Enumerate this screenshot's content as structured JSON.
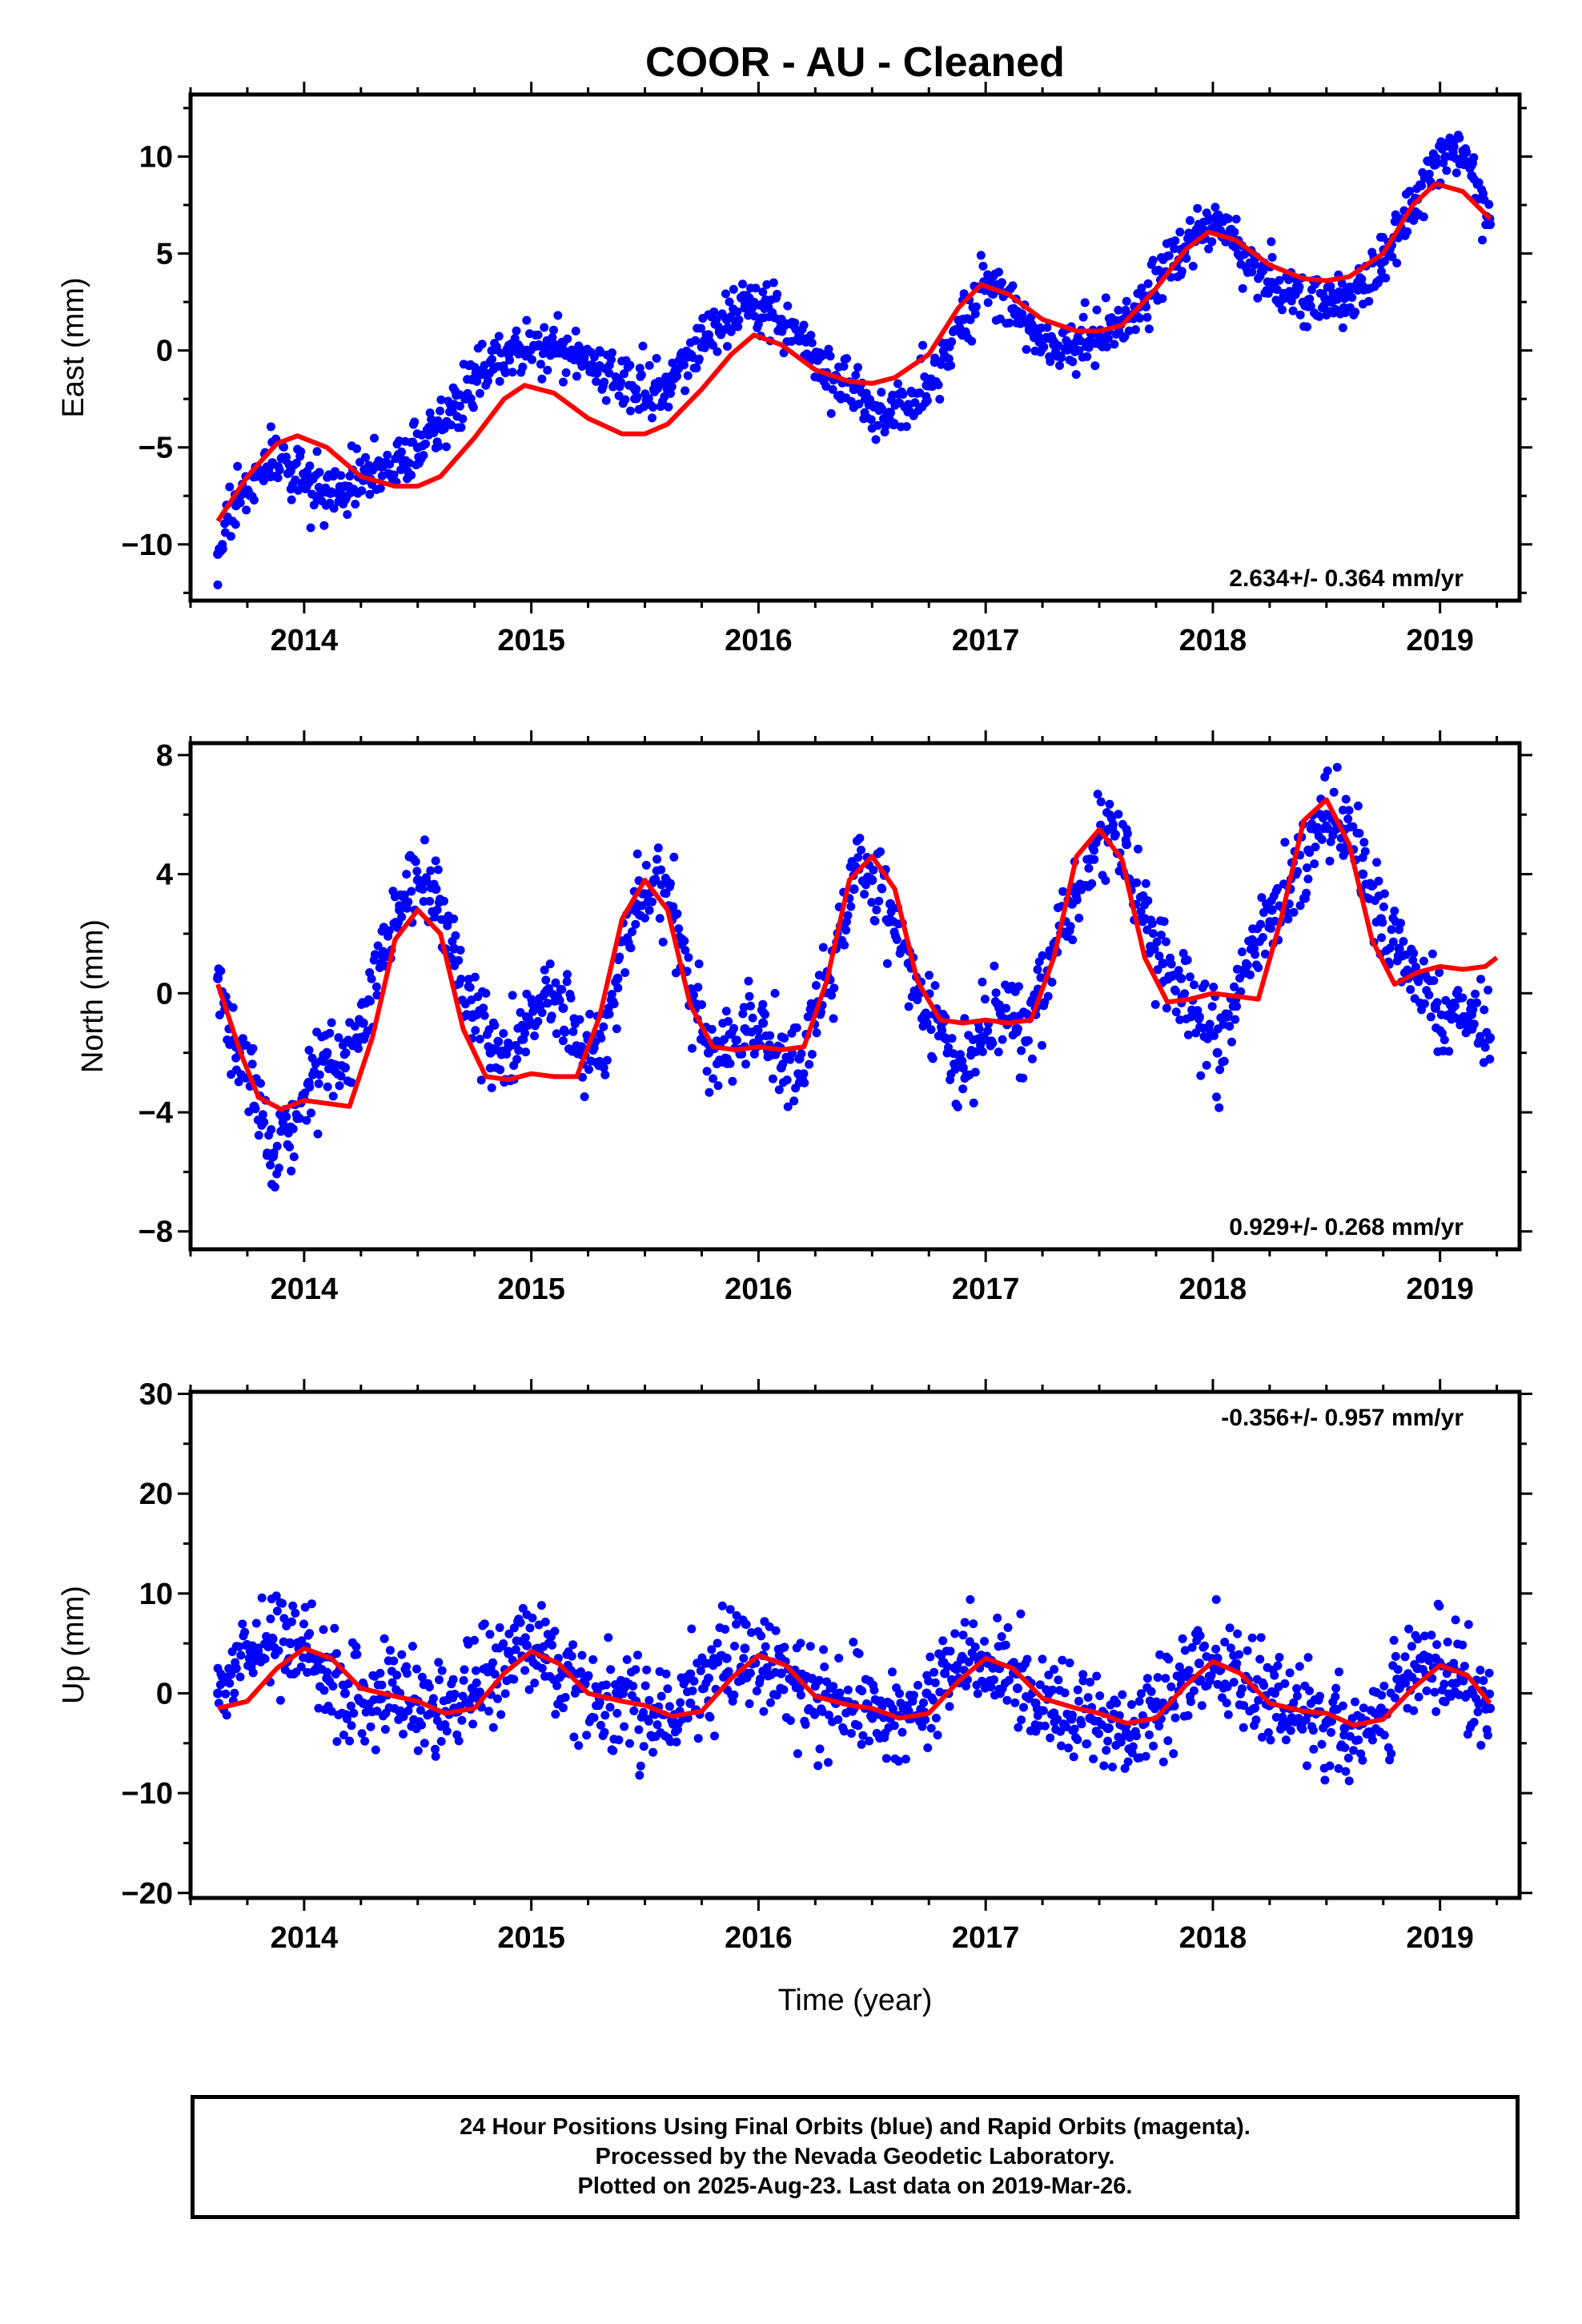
{
  "title": "COOR  - AU - Cleaned",
  "xlabel": "Time (year)",
  "footer": {
    "line1": "24 Hour Positions Using Final Orbits (blue) and Rapid Orbits (magenta).",
    "line2": "Processed by the Nevada Geodetic Laboratory.",
    "line3": "Plotted on 2025-Aug-23. Last data on 2019-Mar-26."
  },
  "colors": {
    "points": "#0000ff",
    "fit": "#ff0000",
    "axes": "#000000"
  },
  "chart_data": [
    {
      "type": "scatter",
      "ylabel": "East (mm)",
      "rate_label": "2.634+/- 0.364 mm/yr",
      "xlim": [
        2013.5,
        2019.35
      ],
      "ylim": [
        -12.9,
        13.2
      ],
      "xticks": [
        2014,
        2015,
        2016,
        2017,
        2018,
        2019
      ],
      "yticks": [
        -10,
        -5,
        0,
        5,
        10
      ],
      "series": [
        {
          "kind": "points",
          "x": [
            2013.62,
            2013.7,
            2013.78,
            2013.86,
            2013.94,
            2014.02,
            2014.1,
            2014.18,
            2014.26,
            2014.34,
            2014.42,
            2014.5,
            2014.58,
            2014.66,
            2014.74,
            2014.82,
            2014.9,
            2014.98,
            2015.06,
            2015.14,
            2015.22,
            2015.3,
            2015.38,
            2015.46,
            2015.54,
            2015.62,
            2015.7,
            2015.78,
            2015.86,
            2015.94,
            2016.02,
            2016.1,
            2016.18,
            2016.26,
            2016.34,
            2016.42,
            2016.5,
            2016.58,
            2016.66,
            2016.74,
            2016.82,
            2016.9,
            2016.98,
            2017.06,
            2017.14,
            2017.22,
            2017.3,
            2017.38,
            2017.46,
            2017.54,
            2017.62,
            2017.7,
            2017.78,
            2017.86,
            2017.94,
            2018.02,
            2018.1,
            2018.18,
            2018.26,
            2018.34,
            2018.42,
            2018.5,
            2018.58,
            2018.66,
            2018.74,
            2018.82,
            2018.9,
            2018.98,
            2019.06,
            2019.14,
            2019.22
          ],
          "y": [
            -10.5,
            -8.0,
            -6.5,
            -5.8,
            -6.2,
            -6.8,
            -7.3,
            -7.0,
            -6.5,
            -6.0,
            -5.5,
            -5.0,
            -4.0,
            -2.8,
            -1.5,
            -0.6,
            -0.2,
            0.0,
            0.2,
            0.4,
            0.0,
            -0.8,
            -1.5,
            -2.0,
            -2.0,
            -1.3,
            -0.2,
            0.8,
            1.6,
            2.2,
            2.4,
            1.6,
            0.5,
            -0.5,
            -1.3,
            -2.0,
            -2.8,
            -3.2,
            -2.8,
            -1.8,
            -0.3,
            1.6,
            3.2,
            3.3,
            2.0,
            0.8,
            0.3,
            0.3,
            0.5,
            1.0,
            1.8,
            2.8,
            4.0,
            5.2,
            6.2,
            6.5,
            5.6,
            4.5,
            3.5,
            2.9,
            2.6,
            2.5,
            2.7,
            3.3,
            4.5,
            6.0,
            7.8,
            9.6,
            10.5,
            9.0,
            6.5
          ]
        },
        {
          "kind": "fit",
          "x": [
            2013.62,
            2013.75,
            2013.88,
            2013.97,
            2014.1,
            2014.25,
            2014.4,
            2014.5,
            2014.6,
            2014.75,
            2014.88,
            2014.97,
            2015.1,
            2015.25,
            2015.4,
            2015.5,
            2015.6,
            2015.75,
            2015.88,
            2015.98,
            2016.1,
            2016.25,
            2016.4,
            2016.5,
            2016.6,
            2016.75,
            2016.88,
            2016.98,
            2017.1,
            2017.25,
            2017.4,
            2017.5,
            2017.6,
            2017.75,
            2017.88,
            2017.98,
            2018.1,
            2018.25,
            2018.4,
            2018.5,
            2018.6,
            2018.75,
            2018.88,
            2018.98,
            2019.1,
            2019.22
          ],
          "y": [
            -8.8,
            -6.5,
            -4.8,
            -4.4,
            -5.0,
            -6.5,
            -7.0,
            -7.0,
            -6.5,
            -4.5,
            -2.5,
            -1.8,
            -2.2,
            -3.5,
            -4.3,
            -4.3,
            -3.8,
            -2.0,
            -0.2,
            0.8,
            0.3,
            -1.0,
            -1.6,
            -1.7,
            -1.4,
            -0.2,
            2.2,
            3.4,
            2.9,
            1.6,
            1.0,
            1.0,
            1.3,
            3.2,
            5.2,
            6.1,
            5.7,
            4.4,
            3.7,
            3.6,
            3.8,
            5.0,
            7.5,
            8.6,
            8.2,
            6.8
          ]
        }
      ]
    },
    {
      "type": "scatter",
      "ylabel": "North (mm)",
      "rate_label": "0.929+/- 0.268 mm/yr",
      "xlim": [
        2013.5,
        2019.35
      ],
      "ylim": [
        -8.6,
        8.4
      ],
      "xticks": [
        2014,
        2015,
        2016,
        2017,
        2018,
        2019
      ],
      "yticks": [
        -8,
        -4,
        0,
        4,
        8
      ],
      "series": [
        {
          "kind": "points",
          "x": [
            2013.62,
            2013.7,
            2013.78,
            2013.86,
            2013.94,
            2014.02,
            2014.1,
            2014.18,
            2014.26,
            2014.34,
            2014.42,
            2014.5,
            2014.58,
            2014.66,
            2014.74,
            2014.82,
            2014.9,
            2014.98,
            2015.06,
            2015.14,
            2015.22,
            2015.3,
            2015.38,
            2015.46,
            2015.54,
            2015.62,
            2015.7,
            2015.78,
            2015.86,
            2015.94,
            2016.02,
            2016.1,
            2016.18,
            2016.26,
            2016.34,
            2016.42,
            2016.5,
            2016.58,
            2016.66,
            2016.74,
            2016.82,
            2016.9,
            2016.98,
            2017.06,
            2017.14,
            2017.22,
            2017.3,
            2017.38,
            2017.46,
            2017.54,
            2017.62,
            2017.7,
            2017.78,
            2017.86,
            2017.94,
            2018.02,
            2018.1,
            2018.18,
            2018.26,
            2018.34,
            2018.42,
            2018.5,
            2018.58,
            2018.66,
            2018.74,
            2018.82,
            2018.9,
            2018.98,
            2019.06,
            2019.14,
            2019.22
          ],
          "y": [
            0.5,
            -1.8,
            -3.8,
            -5.5,
            -4.5,
            -3.0,
            -2.0,
            -2.5,
            -1.0,
            1.0,
            2.8,
            3.8,
            3.5,
            1.5,
            -0.8,
            -2.0,
            -1.8,
            -0.8,
            0.0,
            -0.5,
            -1.8,
            -2.3,
            0.5,
            3.0,
            3.8,
            2.8,
            0.0,
            -2.0,
            -2.2,
            -1.2,
            -1.0,
            -2.5,
            -2.2,
            -0.5,
            1.5,
            3.5,
            3.8,
            3.0,
            1.0,
            -1.0,
            -1.5,
            -2.5,
            -1.5,
            -0.5,
            -1.2,
            -0.5,
            1.5,
            3.0,
            4.5,
            5.5,
            5.0,
            2.5,
            1.0,
            0.5,
            -0.8,
            -2.0,
            -0.2,
            1.5,
            2.8,
            3.5,
            4.8,
            6.0,
            5.5,
            4.0,
            2.5,
            1.5,
            0.5,
            -0.5,
            -0.8,
            -1.2,
            -1.5
          ]
        },
        {
          "kind": "fit",
          "x": [
            2013.62,
            2013.72,
            2013.8,
            2013.9,
            2014.0,
            2014.1,
            2014.2,
            2014.3,
            2014.4,
            2014.5,
            2014.6,
            2014.7,
            2014.8,
            2014.9,
            2015.0,
            2015.1,
            2015.2,
            2015.3,
            2015.4,
            2015.5,
            2015.6,
            2015.7,
            2015.8,
            2015.9,
            2016.0,
            2016.1,
            2016.2,
            2016.3,
            2016.4,
            2016.5,
            2016.6,
            2016.7,
            2016.8,
            2016.9,
            2017.0,
            2017.1,
            2017.2,
            2017.3,
            2017.4,
            2017.5,
            2017.6,
            2017.7,
            2017.8,
            2017.9,
            2018.0,
            2018.1,
            2018.2,
            2018.3,
            2018.4,
            2018.5,
            2018.6,
            2018.7,
            2018.8,
            2018.9,
            2019.0,
            2019.1,
            2019.2,
            2019.25
          ],
          "y": [
            0.3,
            -2.0,
            -3.5,
            -3.9,
            -3.6,
            -3.7,
            -3.8,
            -1.5,
            1.8,
            2.8,
            2.0,
            -1.2,
            -2.8,
            -2.9,
            -2.7,
            -2.8,
            -2.8,
            -0.8,
            2.5,
            3.8,
            2.8,
            -0.4,
            -1.8,
            -1.9,
            -1.8,
            -1.9,
            -1.8,
            0.4,
            3.8,
            4.6,
            3.5,
            0.4,
            -0.9,
            -1.0,
            -0.9,
            -1.0,
            -0.9,
            1.2,
            4.6,
            5.5,
            4.5,
            1.2,
            -0.3,
            -0.2,
            0.0,
            -0.1,
            -0.2,
            2.5,
            5.8,
            6.5,
            5.0,
            1.8,
            0.3,
            0.7,
            0.9,
            0.8,
            0.9,
            1.2
          ]
        }
      ]
    },
    {
      "type": "scatter",
      "ylabel": "Up (mm)",
      "rate_label": "-0.356+/- 0.957 mm/yr",
      "xlim": [
        2013.5,
        2019.35
      ],
      "ylim": [
        -20.5,
        30.2
      ],
      "xticks": [
        2014,
        2015,
        2016,
        2017,
        2018,
        2019
      ],
      "yticks": [
        -20,
        -10,
        0,
        10,
        20,
        30
      ],
      "series": [
        {
          "kind": "points",
          "x": [
            2013.62,
            2013.7,
            2013.78,
            2013.86,
            2013.94,
            2014.02,
            2014.1,
            2014.18,
            2014.26,
            2014.34,
            2014.42,
            2014.5,
            2014.58,
            2014.66,
            2014.74,
            2014.82,
            2014.9,
            2014.98,
            2015.06,
            2015.14,
            2015.22,
            2015.3,
            2015.38,
            2015.46,
            2015.54,
            2015.62,
            2015.7,
            2015.78,
            2015.86,
            2015.94,
            2016.02,
            2016.1,
            2016.18,
            2016.26,
            2016.34,
            2016.42,
            2016.5,
            2016.58,
            2016.66,
            2016.74,
            2016.82,
            2016.9,
            2016.98,
            2017.06,
            2017.14,
            2017.22,
            2017.3,
            2017.38,
            2017.46,
            2017.54,
            2017.62,
            2017.7,
            2017.78,
            2017.86,
            2017.94,
            2018.02,
            2018.1,
            2018.18,
            2018.26,
            2018.34,
            2018.42,
            2018.5,
            2018.58,
            2018.66,
            2018.74,
            2018.82,
            2018.9,
            2018.98,
            2019.06,
            2019.14,
            2019.22
          ],
          "y": [
            0.0,
            2.5,
            4.5,
            5.5,
            5.0,
            3.5,
            1.5,
            0.0,
            -1.0,
            -0.5,
            0.0,
            -0.8,
            -2.0,
            -1.5,
            0.5,
            2.5,
            4.0,
            4.8,
            3.5,
            2.0,
            0.5,
            -0.5,
            -0.3,
            -0.8,
            -2.0,
            -2.5,
            -1.0,
            1.5,
            3.5,
            4.5,
            3.8,
            2.0,
            0.5,
            -0.5,
            -1.0,
            -1.5,
            -2.0,
            -2.5,
            -1.8,
            0.0,
            2.0,
            3.5,
            3.8,
            2.5,
            0.5,
            -1.0,
            -2.0,
            -2.2,
            -2.5,
            -3.5,
            -4.0,
            -3.0,
            -1.0,
            1.5,
            3.0,
            3.5,
            2.5,
            0.5,
            -1.0,
            -1.5,
            -2.0,
            -3.0,
            -3.5,
            -3.0,
            -1.5,
            0.5,
            2.5,
            3.5,
            2.5,
            0.0,
            -1.5
          ]
        },
        {
          "kind": "fit",
          "x": [
            2013.62,
            2013.75,
            2013.88,
            2014.0,
            2014.12,
            2014.25,
            2014.4,
            2014.5,
            2014.62,
            2014.75,
            2014.88,
            2015.0,
            2015.12,
            2015.25,
            2015.4,
            2015.5,
            2015.62,
            2015.75,
            2015.88,
            2016.0,
            2016.12,
            2016.25,
            2016.4,
            2016.5,
            2016.62,
            2016.75,
            2016.88,
            2017.0,
            2017.12,
            2017.25,
            2017.4,
            2017.5,
            2017.62,
            2017.75,
            2017.88,
            2018.0,
            2018.12,
            2018.25,
            2018.4,
            2018.5,
            2018.62,
            2018.75,
            2018.88,
            2019.0,
            2019.12,
            2019.22
          ],
          "y": [
            -1.5,
            -0.8,
            2.5,
            4.5,
            3.5,
            0.5,
            -0.3,
            -0.8,
            -2.0,
            -1.5,
            2.0,
            4.2,
            3.0,
            0.0,
            -0.8,
            -1.2,
            -2.3,
            -1.8,
            1.5,
            3.8,
            2.8,
            -0.3,
            -1.2,
            -1.5,
            -2.5,
            -2.0,
            1.2,
            3.5,
            2.5,
            -0.5,
            -1.5,
            -2.0,
            -3.0,
            -2.5,
            0.8,
            3.2,
            2.0,
            -1.0,
            -1.8,
            -2.0,
            -3.2,
            -2.6,
            0.5,
            2.8,
            1.8,
            -1.0
          ]
        }
      ]
    }
  ]
}
